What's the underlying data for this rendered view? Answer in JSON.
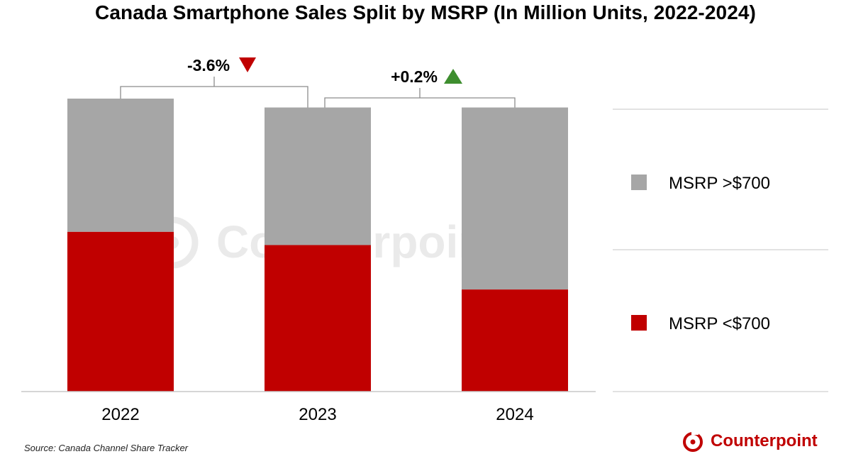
{
  "title": "Canada Smartphone Sales Split by MSRP (In Million Units, 2022-2024)",
  "source": "Source: Canada Channel Share Tracker",
  "brand": "Counterpoint",
  "watermark": "Counterpoint",
  "colors": {
    "over_700": "#a6a6a6",
    "under_700": "#c00000",
    "down": "#c00000",
    "up": "#3e8e2f",
    "axis": "#c8c8c8",
    "bracket": "#8c8c8c"
  },
  "chart_data": {
    "type": "bar",
    "stacked": true,
    "title": "Canada Smartphone Sales Split by MSRP (In Million Units, 2022-2024)",
    "categories": [
      "2022",
      "2023",
      "2024"
    ],
    "series": [
      {
        "name": "MSRP <$700",
        "values": [
          3.6,
          3.3,
          2.3
        ]
      },
      {
        "name": "MSRP >$700",
        "values": [
          3.0,
          3.1,
          4.1
        ]
      }
    ],
    "totals": [
      6.6,
      6.4,
      6.4
    ],
    "legend": {
      "placement": "right",
      "entries": [
        "MSRP >$700",
        "MSRP <$700"
      ]
    },
    "annotations": [
      {
        "from": "2022",
        "to": "2023",
        "label": "-3.6%",
        "direction": "down"
      },
      {
        "from": "2023",
        "to": "2024",
        "label": "+0.2%",
        "direction": "up"
      }
    ],
    "xlabel": "",
    "ylabel": "",
    "ylim": [
      0,
      6.6
    ],
    "grid": false
  }
}
